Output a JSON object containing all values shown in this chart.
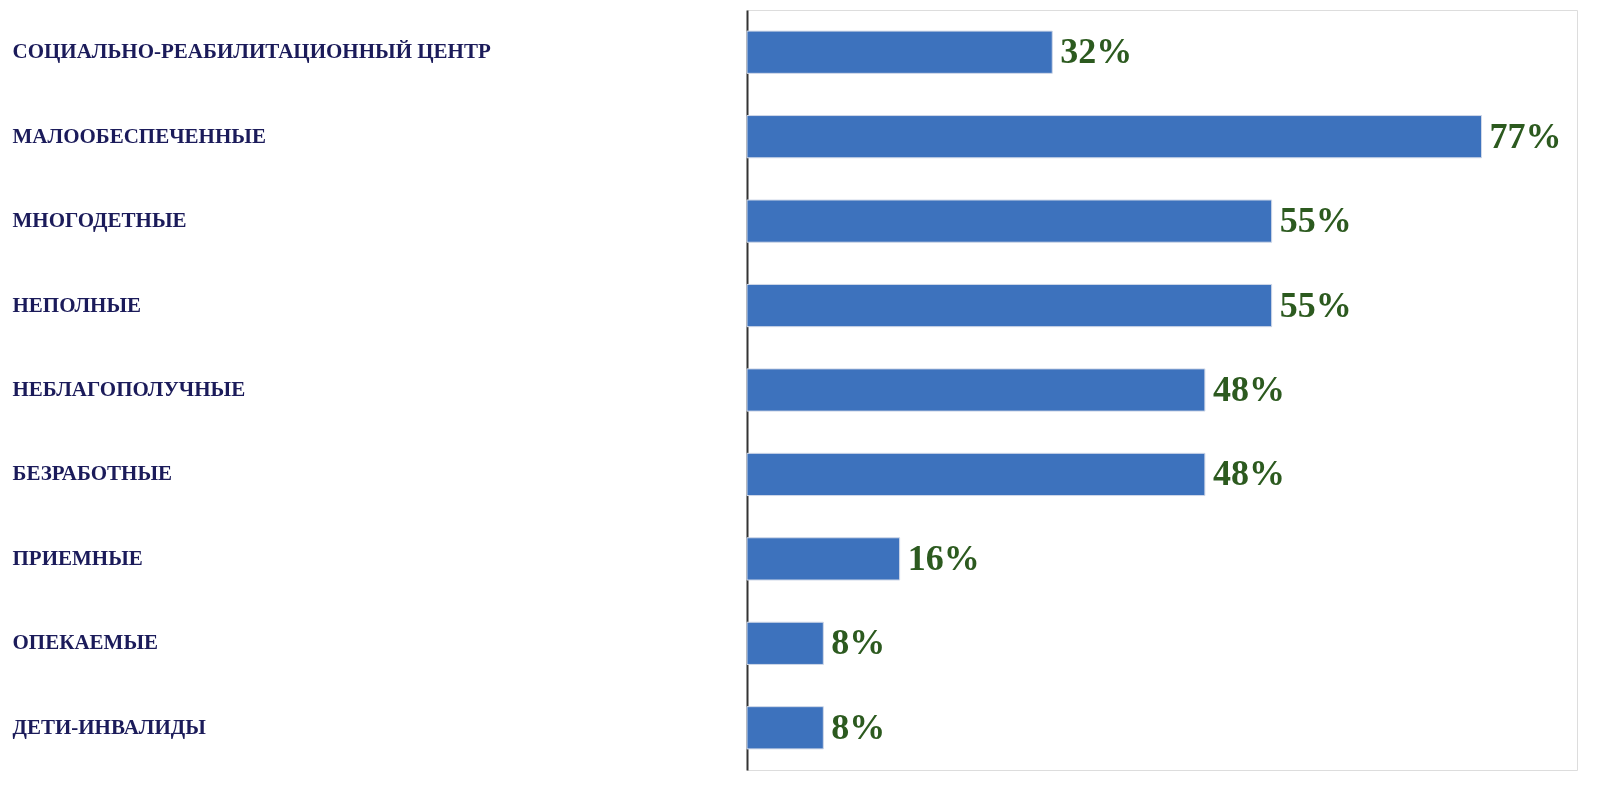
{
  "chart_data": {
    "type": "bar",
    "orientation": "horizontal",
    "tick_labels": "y",
    "color": "#3d72bd",
    "categories": [
      "СОЦИАЛЬНО-РЕАБИЛИТАЦИОННЫЙ ЦЕНТР",
      "МАЛООБЕСПЕЧЕННЫЕ",
      "МНОГОДЕТНЫЕ",
      "НЕПОЛНЫЕ",
      "НЕБЛАГОПОЛУЧНЫЕ",
      "БЕЗРАБОТНЫЕ",
      "ПРИЕМНЫЕ",
      "ОПЕКАЕМЫЕ",
      "ДЕТИ-ИНВАЛИДЫ"
    ],
    "values": [
      32,
      77,
      55,
      55,
      48,
      48,
      16,
      8,
      8
    ],
    "value_labels": [
      "32%",
      "77%",
      "55%",
      "55%",
      "48%",
      "48%",
      "16%",
      "8%",
      "8%"
    ]
  }
}
